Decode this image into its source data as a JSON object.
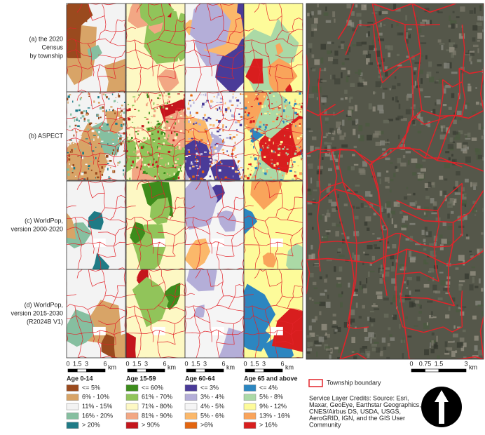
{
  "row_labels": [
    [
      "(a) the 2020",
      "Census",
      "by township"
    ],
    [
      "(b) ASPECT"
    ],
    [
      "(c) WorldPop,",
      "version 2000-2020"
    ],
    [
      "(d) WorldPop,",
      "version 2015-2030",
      "(R2024B V1)"
    ]
  ],
  "scale_bar": {
    "ticks": [
      0,
      1.5,
      3,
      6
    ],
    "unit": "km"
  },
  "satellite_scale_bar": {
    "ticks": [
      0,
      0.75,
      1.5,
      3
    ],
    "unit": "km"
  },
  "legends": [
    {
      "title": "Age 0-14",
      "items": [
        {
          "label": "<= 5%",
          "color": "#9a4a1e"
        },
        {
          "label": "6% - 10%",
          "color": "#d8a467"
        },
        {
          "label": "11% - 15%",
          "color": "#f3f3f3"
        },
        {
          "label": "16% - 20%",
          "color": "#86bfa0"
        },
        {
          "label": "> 20%",
          "color": "#1f7b86"
        }
      ]
    },
    {
      "title": "Age 15-59",
      "items": [
        {
          "label": "<= 60%",
          "color": "#3d8c1c"
        },
        {
          "label": "61% - 70%",
          "color": "#91c45a"
        },
        {
          "label": "71% - 80%",
          "color": "#fdf8c4"
        },
        {
          "label": "81% - 90%",
          "color": "#f2a784"
        },
        {
          "label": "> 90%",
          "color": "#c4161c"
        }
      ]
    },
    {
      "title": "Age 60-64",
      "items": [
        {
          "label": "<= 3%",
          "color": "#4a3b98"
        },
        {
          "label": "3% - 4%",
          "color": "#b4aed8"
        },
        {
          "label": "4% - 5%",
          "color": "#f5f5f5"
        },
        {
          "label": "5% - 6%",
          "color": "#fbb86a"
        },
        {
          "label": ">6%",
          "color": "#e3650f"
        }
      ]
    },
    {
      "title": "Age 65 and above",
      "items": [
        {
          "label": "<= 4%",
          "color": "#2c86c0"
        },
        {
          "label": "5% - 8%",
          "color": "#abd9a6"
        },
        {
          "label": "9% - 12%",
          "color": "#fdfb9a"
        },
        {
          "label": "13% - 16%",
          "color": "#f9a45b"
        },
        {
          "label": "> 16%",
          "color": "#d81e1e"
        }
      ]
    }
  ],
  "boundary_legend": {
    "label": "Township boundary",
    "color": "#e3232a"
  },
  "credits": [
    "Service Layer Credits: Source: Esri,",
    "Maxar, GeoEye, Earthstar Geographics,",
    "CNES/Airbus DS, USDA, USGS,",
    "AeroGRID, IGN, and the GIS User",
    "Community"
  ]
}
